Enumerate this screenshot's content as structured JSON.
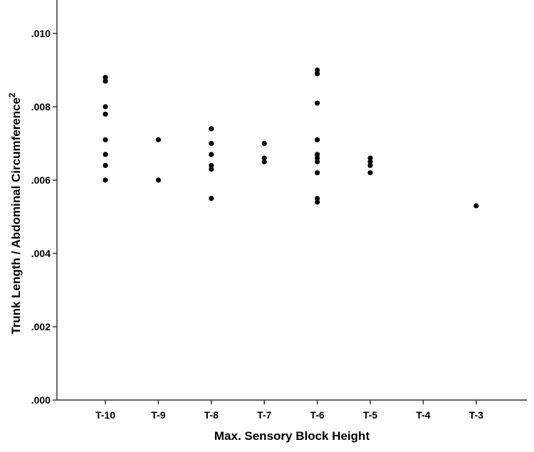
{
  "chart_data": {
    "type": "scatter",
    "title": "",
    "xlabel": "Max. Sensory Block Height",
    "ylabel": "Trunk Length / Abdominal Circumference",
    "ylabel_superscript": "2",
    "categories": [
      "T-10",
      "T-9",
      "T-8",
      "T-7",
      "T-6",
      "T-5",
      "T-4",
      "T-3"
    ],
    "ylim": [
      0.0,
      0.011
    ],
    "yticks": [
      0.0,
      0.002,
      0.004,
      0.006,
      0.008,
      0.01
    ],
    "ytick_labels": [
      ".000",
      ".002",
      ".004",
      ".006",
      ".008",
      ".010"
    ],
    "grid": false,
    "legend": "none",
    "point_color": "#000000",
    "points": [
      {
        "x": "T-10",
        "y": 0.0088
      },
      {
        "x": "T-10",
        "y": 0.0087
      },
      {
        "x": "T-10",
        "y": 0.008
      },
      {
        "x": "T-10",
        "y": 0.0078
      },
      {
        "x": "T-10",
        "y": 0.0071
      },
      {
        "x": "T-10",
        "y": 0.0067
      },
      {
        "x": "T-10",
        "y": 0.0064
      },
      {
        "x": "T-10",
        "y": 0.006
      },
      {
        "x": "T-9",
        "y": 0.0071
      },
      {
        "x": "T-9",
        "y": 0.006
      },
      {
        "x": "T-8",
        "y": 0.0074
      },
      {
        "x": "T-8",
        "y": 0.007
      },
      {
        "x": "T-8",
        "y": 0.007
      },
      {
        "x": "T-8",
        "y": 0.0067
      },
      {
        "x": "T-8",
        "y": 0.0064
      },
      {
        "x": "T-8",
        "y": 0.0063
      },
      {
        "x": "T-8",
        "y": 0.0055
      },
      {
        "x": "T-7",
        "y": 0.007
      },
      {
        "x": "T-7",
        "y": 0.0066
      },
      {
        "x": "T-7",
        "y": 0.0065
      },
      {
        "x": "T-6",
        "y": 0.009
      },
      {
        "x": "T-6",
        "y": 0.0089
      },
      {
        "x": "T-6",
        "y": 0.0081
      },
      {
        "x": "T-6",
        "y": 0.0071
      },
      {
        "x": "T-6",
        "y": 0.0067
      },
      {
        "x": "T-6",
        "y": 0.0066
      },
      {
        "x": "T-6",
        "y": 0.0065
      },
      {
        "x": "T-6",
        "y": 0.0062
      },
      {
        "x": "T-6",
        "y": 0.0055
      },
      {
        "x": "T-6",
        "y": 0.0054
      },
      {
        "x": "T-5",
        "y": 0.0066
      },
      {
        "x": "T-5",
        "y": 0.0065
      },
      {
        "x": "T-5",
        "y": 0.0064
      },
      {
        "x": "T-5",
        "y": 0.0062
      },
      {
        "x": "T-3",
        "y": 0.0053
      }
    ]
  }
}
